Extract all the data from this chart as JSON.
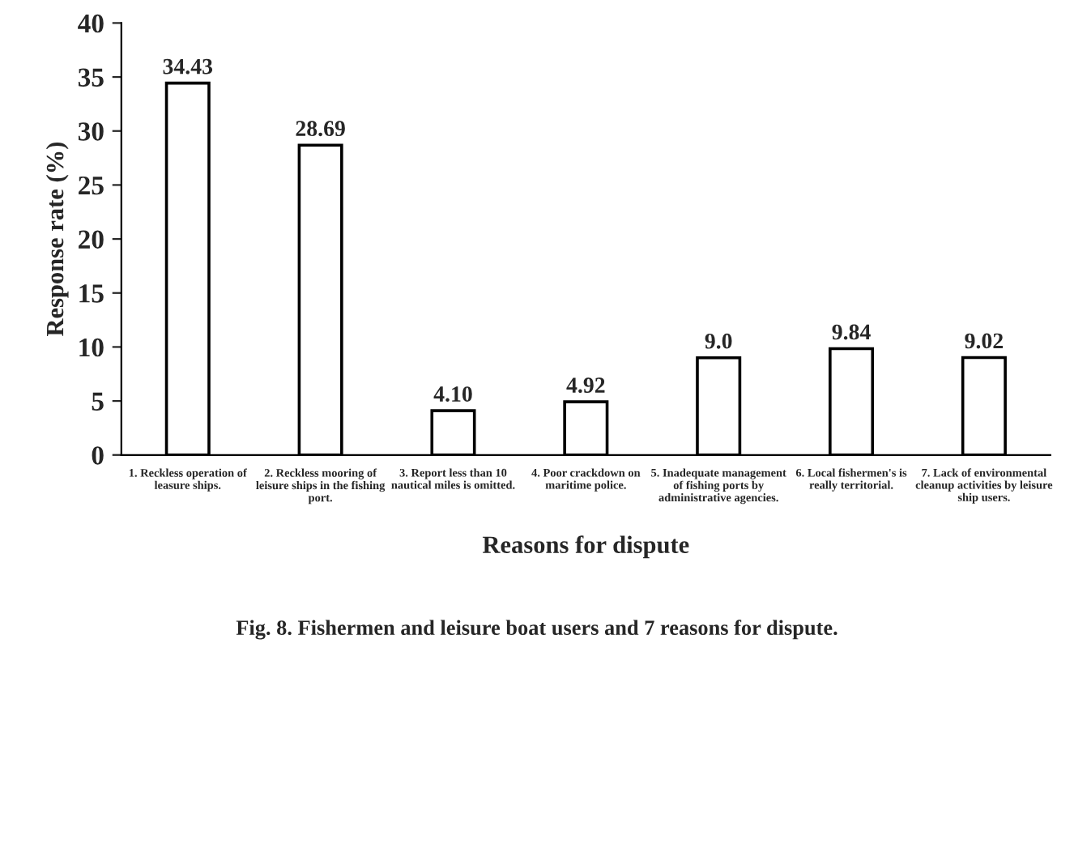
{
  "chart_data": {
    "type": "bar",
    "xlabel": "Reasons for dispute",
    "ylabel": "Response rate (%)",
    "categories": [
      "1. Reckless operation of\nleasure ships.",
      "2. Reckless mooring of\nleisure ships in the fishing\nport.",
      "3. Report less than 10\nnautical miles is omitted.",
      "4. Poor crackdown on\nmaritime police.",
      "5. Inadequate management\nof fishing ports by\nadministrative agencies.",
      "6. Local fishermen's is\nreally territorial.",
      "7. Lack of environmental\ncleanup activities by leisure\nship users."
    ],
    "values": [
      34.43,
      28.69,
      4.1,
      4.92,
      9.0,
      9.84,
      9.02
    ],
    "value_labels": [
      "34.43",
      "28.69",
      "4.10",
      "4.92",
      "9.0",
      "9.84",
      "9.02"
    ],
    "color": "#ffffff",
    "ylim": [
      0,
      40
    ],
    "yticks": [
      0,
      5,
      10,
      15,
      20,
      25,
      30,
      35,
      40
    ],
    "grid": false,
    "annotations": [
      "Fig. 8. Fishermen and leisure boat users and 7 reasons for dispute."
    ]
  }
}
